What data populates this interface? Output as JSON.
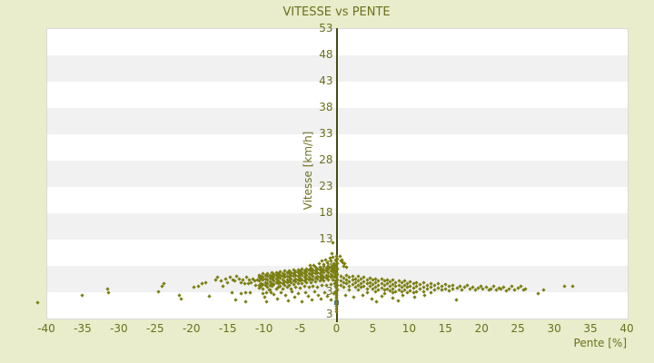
{
  "chart_data": {
    "type": "scatter",
    "title": "VITESSE vs PENTE",
    "xlabel": "Pente [%]",
    "ylabel": "Vitesse [km/h]",
    "xlim": [
      -40,
      40
    ],
    "ylim": [
      -2,
      53
    ],
    "x_ticks": [
      -40,
      -35,
      -30,
      -25,
      -20,
      -15,
      -10,
      -5,
      0,
      5,
      10,
      15,
      20,
      25,
      30,
      35,
      40
    ],
    "y_ticks": [
      53,
      48,
      43,
      38,
      33,
      28,
      23,
      18,
      13,
      8,
      3
    ],
    "y_min_label": "3",
    "grid": "horizontal-bands",
    "legend": "none",
    "highlight_point": {
      "pente": 0,
      "vitesse": 0.9
    },
    "points_flat": [
      [
        -41.2,
        0.8
      ],
      [
        -35.1,
        2.3
      ],
      [
        -31.6,
        3.5
      ],
      [
        -31.4,
        2.7
      ],
      [
        -24.6,
        3.0
      ],
      [
        -24.1,
        4.0
      ],
      [
        -23.8,
        4.4
      ],
      [
        -21.6,
        2.3
      ],
      [
        -21.4,
        1.6
      ],
      [
        -19.6,
        3.7
      ],
      [
        -19.0,
        4.0
      ],
      [
        -18.5,
        4.4
      ],
      [
        -18.0,
        4.6
      ],
      [
        -17.5,
        2.1
      ],
      [
        -16.6,
        5.2
      ],
      [
        -16.4,
        5.6
      ],
      [
        -15.9,
        4.9
      ],
      [
        -15.6,
        4.0
      ],
      [
        -15.3,
        5.4
      ],
      [
        -15.0,
        4.7
      ],
      [
        -14.6,
        5.6
      ],
      [
        -14.4,
        2.7
      ],
      [
        -14.3,
        5.2
      ],
      [
        -14.0,
        4.9
      ],
      [
        -13.9,
        1.3
      ],
      [
        -13.8,
        5.8
      ],
      [
        -13.4,
        5.4
      ],
      [
        -13.1,
        4.6
      ],
      [
        -13.1,
        2.5
      ],
      [
        -12.9,
        5.1
      ],
      [
        -12.6,
        4.4
      ],
      [
        -12.5,
        2.8
      ],
      [
        -12.5,
        1.1
      ],
      [
        -12.4,
        5.6
      ],
      [
        -12.1,
        4.4
      ],
      [
        -12.0,
        5.2
      ],
      [
        -11.8,
        4.7
      ],
      [
        -11.9,
        2.7
      ],
      [
        -11.5,
        5.4
      ],
      [
        -11.3,
        4.9
      ],
      [
        -11.1,
        4.2
      ],
      [
        -10.9,
        5.2
      ],
      [
        -9.6,
        2.7
      ],
      [
        -9.6,
        1.1
      ],
      [
        -9.3,
        3.3
      ],
      [
        -9.0,
        2.8
      ],
      [
        -10.2,
        2.6
      ],
      [
        -9.9,
        1.9
      ],
      [
        -8.7,
        2.4
      ],
      [
        -8.1,
        1.5
      ],
      [
        -7.6,
        2.8
      ],
      [
        -7.0,
        2.2
      ],
      [
        -6.6,
        1.2
      ],
      [
        -6.1,
        2.9
      ],
      [
        -5.7,
        1.8
      ],
      [
        -5.2,
        2.5
      ],
      [
        -4.8,
        1.1
      ],
      [
        -4.3,
        2.7
      ],
      [
        -3.9,
        2.0
      ],
      [
        -3.4,
        1.4
      ],
      [
        -3.0,
        2.9
      ],
      [
        -2.5,
        2.2
      ],
      [
        -2.1,
        1.6
      ],
      [
        -1.6,
        2.8
      ],
      [
        -1.2,
        2.1
      ],
      [
        -0.7,
        1.3
      ],
      [
        -0.4,
        2.5
      ],
      [
        -2.4,
        8.3
      ],
      [
        -2.0,
        8.8
      ],
      [
        -1.8,
        8.1
      ],
      [
        -1.5,
        9.0
      ],
      [
        -1.2,
        8.5
      ],
      [
        -0.9,
        9.3
      ],
      [
        -0.7,
        8.7
      ],
      [
        -0.5,
        9.5
      ],
      [
        -0.4,
        8.2
      ],
      [
        -3.1,
        8.0
      ],
      [
        -3.6,
        7.9
      ],
      [
        -0.6,
        10.1
      ],
      [
        -0.5,
        12.3
      ],
      [
        0,
        9.6
      ],
      [
        0.1,
        9.2
      ],
      [
        -0.1,
        8.9
      ],
      [
        0,
        8.6
      ],
      [
        0.1,
        8.2
      ],
      [
        -0.1,
        7.9
      ],
      [
        0,
        7.6
      ],
      [
        0.1,
        7.2
      ],
      [
        -0.1,
        6.9
      ],
      [
        0,
        6.6
      ],
      [
        0.1,
        6.2
      ],
      [
        -0.1,
        5.9
      ],
      [
        0,
        5.6
      ],
      [
        0.1,
        5.2
      ],
      [
        -0.1,
        4.9
      ],
      [
        0,
        4.6
      ],
      [
        0.1,
        4.2
      ],
      [
        -0.1,
        3.9
      ],
      [
        0,
        3.6
      ],
      [
        0.1,
        3.2
      ],
      [
        -0.1,
        2.9
      ],
      [
        0,
        2.6
      ],
      [
        0,
        2.2
      ],
      [
        0,
        1.9
      ],
      [
        0,
        1.5
      ],
      [
        0,
        1.1
      ],
      [
        0,
        0.6
      ],
      [
        0,
        0.2
      ],
      [
        0,
        -0.3
      ],
      [
        0,
        -0.8
      ],
      [
        0.5,
        9.6
      ],
      [
        0.8,
        9.0
      ],
      [
        0.9,
        8.5
      ],
      [
        1.0,
        7.8
      ],
      [
        1.4,
        7.5
      ],
      [
        0.6,
        8.8
      ],
      [
        1.1,
        8.2
      ],
      [
        1.2,
        2.2
      ],
      [
        2.4,
        1.8
      ],
      [
        3.6,
        2.3
      ],
      [
        4.9,
        1.5
      ],
      [
        6.3,
        2.0
      ],
      [
        7.7,
        1.7
      ],
      [
        9.2,
        2.2
      ],
      [
        10.8,
        1.9
      ],
      [
        16.5,
        1.3
      ],
      [
        5.5,
        1.0
      ],
      [
        8.5,
        1.2
      ],
      [
        12.2,
        2.3
      ],
      [
        16.6,
        3.6
      ],
      [
        17.0,
        3.9
      ],
      [
        17.3,
        3.3
      ],
      [
        17.7,
        3.7
      ],
      [
        18.0,
        4.1
      ],
      [
        18.4,
        3.4
      ],
      [
        18.8,
        3.8
      ],
      [
        19.1,
        3.2
      ],
      [
        19.5,
        3.6
      ],
      [
        19.9,
        4.0
      ],
      [
        20.2,
        3.4
      ],
      [
        20.6,
        3.7
      ],
      [
        21.0,
        3.2
      ],
      [
        21.3,
        3.5
      ],
      [
        21.7,
        3.9
      ],
      [
        22.0,
        3.3
      ],
      [
        22.4,
        3.6
      ],
      [
        22.7,
        3.4
      ],
      [
        23.0,
        3.7
      ],
      [
        23.4,
        3.1
      ],
      [
        23.8,
        3.5
      ],
      [
        24.2,
        3.9
      ],
      [
        24.6,
        3.3
      ],
      [
        25.0,
        3.6
      ],
      [
        25.4,
        4.0
      ],
      [
        25.8,
        3.2
      ],
      [
        26.1,
        3.5
      ],
      [
        27.8,
        2.5
      ],
      [
        28.5,
        3.3
      ],
      [
        31.4,
        4.0
      ],
      [
        32.5,
        4.0
      ]
    ],
    "points_columns": [
      [
        -10.7,
        [
          4.2,
          5.0,
          5.6,
          6.1,
          3.6
        ]
      ],
      [
        -10.4,
        [
          4.5,
          5.3,
          5.9,
          4.0
        ]
      ],
      [
        -10.1,
        [
          4.3,
          5.1,
          5.7,
          6.3,
          3.4
        ]
      ],
      [
        -9.8,
        [
          4.7,
          5.4,
          6.0,
          4.1
        ]
      ],
      [
        -9.5,
        [
          4.4,
          5.2,
          5.8,
          6.4,
          3.7
        ]
      ],
      [
        -9.2,
        [
          4.8,
          5.5,
          6.1,
          4.2,
          3.3
        ]
      ],
      [
        -8.9,
        [
          4.5,
          5.3,
          5.9,
          6.5,
          3.9
        ]
      ],
      [
        -8.6,
        [
          4.9,
          5.6,
          6.2,
          4.3
        ]
      ],
      [
        -8.3,
        [
          4.6,
          5.4,
          6.0,
          6.6,
          3.5
        ]
      ],
      [
        -8.0,
        [
          5.0,
          5.7,
          6.3,
          4.4,
          3.8
        ]
      ],
      [
        -7.7,
        [
          4.7,
          5.5,
          6.1,
          6.7,
          4.0
        ]
      ],
      [
        -7.4,
        [
          5.1,
          5.8,
          6.4,
          4.5,
          3.4
        ]
      ],
      [
        -7.1,
        [
          4.8,
          5.6,
          6.2,
          6.8,
          4.1
        ]
      ],
      [
        -6.8,
        [
          5.2,
          5.9,
          6.5,
          4.6,
          3.7
        ]
      ],
      [
        -6.5,
        [
          4.9,
          5.7,
          6.3,
          6.9,
          4.2
        ]
      ],
      [
        -6.2,
        [
          5.3,
          6.0,
          6.6,
          4.7,
          3.5
        ]
      ],
      [
        -5.9,
        [
          5.0,
          5.8,
          6.4,
          7.0,
          4.3
        ]
      ],
      [
        -5.6,
        [
          5.4,
          6.1,
          6.7,
          4.8,
          3.8
        ]
      ],
      [
        -5.3,
        [
          5.1,
          5.9,
          6.5,
          7.1,
          4.4
        ]
      ],
      [
        -5.0,
        [
          5.5,
          6.2,
          6.8,
          4.9,
          3.6
        ]
      ],
      [
        -4.7,
        [
          5.2,
          6.0,
          6.6,
          7.2,
          4.5
        ]
      ],
      [
        -4.4,
        [
          5.6,
          6.3,
          6.9,
          5.0,
          3.9
        ]
      ],
      [
        -4.1,
        [
          5.3,
          6.1,
          6.7,
          7.3,
          4.6
        ]
      ],
      [
        -3.8,
        [
          5.7,
          6.4,
          7.0,
          5.1,
          3.7
        ]
      ],
      [
        -3.5,
        [
          5.4,
          6.2,
          6.8,
          7.4,
          4.7
        ]
      ],
      [
        -3.2,
        [
          5.8,
          6.5,
          7.1,
          5.2,
          4.0
        ]
      ],
      [
        -2.9,
        [
          5.5,
          6.3,
          6.9,
          7.5,
          4.8
        ]
      ],
      [
        -2.6,
        [
          5.9,
          6.6,
          7.2,
          5.3,
          3.8
        ]
      ],
      [
        -2.3,
        [
          5.6,
          6.4,
          7.0,
          7.6,
          4.9
        ]
      ],
      [
        -2.0,
        [
          6.0,
          6.7,
          7.3,
          5.4,
          4.1
        ]
      ],
      [
        -1.7,
        [
          5.7,
          6.5,
          7.1,
          7.7,
          5.0
        ]
      ],
      [
        -1.4,
        [
          6.1,
          6.8,
          7.4,
          5.5,
          4.2
        ]
      ],
      [
        -1.1,
        [
          5.8,
          6.6,
          7.2,
          7.8,
          5.1
        ]
      ],
      [
        -0.8,
        [
          6.2,
          6.9,
          7.5,
          5.6,
          4.3
        ]
      ],
      [
        -0.5,
        [
          5.9,
          6.7,
          7.3,
          7.9,
          5.2
        ]
      ],
      [
        -0.3,
        [
          6.3,
          7.0,
          7.6,
          5.7,
          4.4
        ]
      ],
      [
        0.6,
        [
          5.8,
          5.0,
          4.2
        ]
      ],
      [
        1.0,
        [
          5.5,
          4.6,
          3.8
        ]
      ],
      [
        1.4,
        [
          6.0,
          5.2,
          4.4
        ]
      ],
      [
        1.8,
        [
          5.6,
          4.8,
          4.0,
          3.2
        ]
      ],
      [
        2.2,
        [
          5.9,
          5.1,
          4.3
        ]
      ],
      [
        2.6,
        [
          5.4,
          4.6,
          3.7
        ]
      ],
      [
        3.0,
        [
          5.8,
          5.0,
          4.1,
          3.3
        ]
      ],
      [
        3.4,
        [
          5.3,
          4.5,
          3.8
        ]
      ],
      [
        3.8,
        [
          5.6,
          4.8,
          4.0
        ]
      ],
      [
        4.2,
        [
          5.2,
          4.4,
          3.5,
          2.8
        ]
      ],
      [
        4.6,
        [
          5.5,
          4.7,
          3.9
        ]
      ],
      [
        5.0,
        [
          5.1,
          4.3,
          3.4
        ]
      ],
      [
        5.4,
        [
          5.4,
          4.6,
          3.8,
          2.9
        ]
      ],
      [
        5.8,
        [
          5.0,
          4.2,
          3.3
        ]
      ],
      [
        6.2,
        [
          5.3,
          4.5,
          3.6
        ]
      ],
      [
        6.6,
        [
          4.9,
          4.1,
          3.2,
          2.6
        ]
      ],
      [
        7.0,
        [
          5.2,
          4.4,
          3.5
        ]
      ],
      [
        7.4,
        [
          4.8,
          4.0,
          3.1
        ]
      ],
      [
        7.8,
        [
          5.1,
          4.3,
          3.4,
          2.7
        ]
      ],
      [
        8.2,
        [
          4.7,
          3.9,
          3.0
        ]
      ],
      [
        8.6,
        [
          5.0,
          4.2,
          3.3
        ]
      ],
      [
        9.0,
        [
          4.6,
          3.8,
          2.9
        ]
      ],
      [
        9.4,
        [
          4.9,
          4.1,
          3.2
        ]
      ],
      [
        9.8,
        [
          4.5,
          3.7,
          2.8
        ]
      ],
      [
        10.2,
        [
          4.8,
          4.0,
          3.1
        ]
      ],
      [
        10.6,
        [
          4.4,
          3.6,
          2.7
        ]
      ],
      [
        11.0,
        [
          4.7,
          3.9,
          3.0
        ]
      ],
      [
        11.5,
        [
          4.3,
          3.5
        ]
      ],
      [
        12.0,
        [
          4.6,
          3.8,
          2.9
        ]
      ],
      [
        12.5,
        [
          4.2,
          3.4
        ]
      ],
      [
        13.0,
        [
          4.5,
          3.7,
          2.8
        ]
      ],
      [
        13.5,
        [
          4.1,
          3.3
        ]
      ],
      [
        14.0,
        [
          4.4,
          3.6
        ]
      ],
      [
        14.5,
        [
          4.0,
          3.2
        ]
      ],
      [
        15.0,
        [
          4.3,
          3.5
        ]
      ],
      [
        15.5,
        [
          3.9,
          3.1
        ]
      ],
      [
        16.0,
        [
          4.2,
          3.4
        ]
      ]
    ]
  },
  "style": {
    "background": "#e9edcb",
    "band_light": "#ffffff",
    "band_dark": "#f1f1f2",
    "plot_border": "#d9d9d9",
    "axis_line_color": "#474b10",
    "text_color": "#6b701d",
    "point_color": "#7a7e12",
    "highlight_color": "#3a76a4"
  }
}
